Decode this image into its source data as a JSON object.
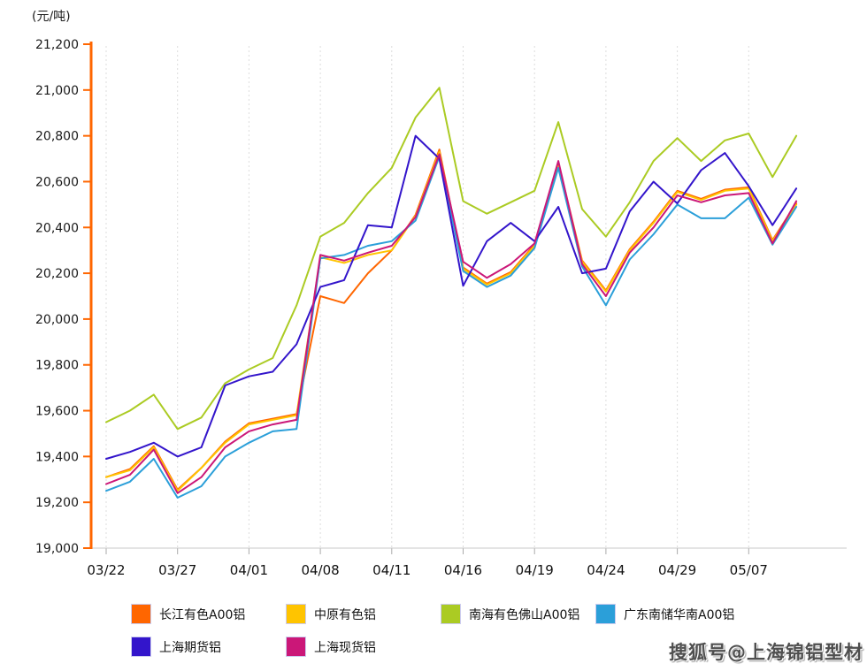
{
  "unit_label": "(元/吨)",
  "watermark": "搜狐号@上海锦铝型材",
  "chart_data": {
    "type": "line",
    "x_labels": [
      "03/22",
      "03/27",
      "04/01",
      "04/08",
      "04/11",
      "04/16",
      "04/19",
      "04/24",
      "04/29",
      "05/07"
    ],
    "label_every": 3,
    "n_points": 30,
    "y_min": 19000,
    "y_max": 21200,
    "y_step": 200,
    "y_tick_labels": [
      "21,200",
      "21,000",
      "20,800",
      "20,600",
      "20,400",
      "20,200",
      "20,000",
      "19,800",
      "19,600",
      "19,400",
      "19,200",
      "19,000"
    ],
    "grid": "vertical-dashed",
    "legend_position": "bottom",
    "axis_color": "#FF6600",
    "series": [
      {
        "name": "长江有色A00铝",
        "color": "#FF6600",
        "values": [
          19310,
          19345,
          19445,
          19255,
          19350,
          19465,
          19545,
          19565,
          19585,
          20100,
          20070,
          20200,
          20300,
          20455,
          20740,
          20225,
          20155,
          20205,
          20325,
          20680,
          20255,
          20125,
          20305,
          20425,
          20560,
          20525,
          20565,
          20575,
          20345,
          20505
        ]
      },
      {
        "name": "中原有色铝",
        "color": "#FFC400",
        "values": [
          19310,
          19340,
          19440,
          19250,
          19350,
          19460,
          19540,
          19560,
          19580,
          20270,
          20245,
          20280,
          20300,
          20450,
          20730,
          20220,
          20150,
          20200,
          20320,
          20670,
          20250,
          20120,
          20300,
          20420,
          20555,
          20520,
          20560,
          20570,
          20340,
          20500
        ]
      },
      {
        "name": "南海有色佛山A00铝",
        "color": "#ABCB23",
        "values": [
          19550,
          19600,
          19670,
          19520,
          19570,
          19720,
          19780,
          19830,
          20060,
          20360,
          20420,
          20550,
          20660,
          20880,
          21010,
          20515,
          20460,
          20510,
          20560,
          20860,
          20480,
          20360,
          20510,
          20690,
          20790,
          20690,
          20780,
          20810,
          20620,
          20800
        ]
      },
      {
        "name": "广东南储华南A00铝",
        "color": "#2B9FD9",
        "values": [
          19250,
          19290,
          19390,
          19220,
          19270,
          19400,
          19460,
          19510,
          19520,
          20265,
          20280,
          20320,
          20340,
          20430,
          20710,
          20210,
          20140,
          20190,
          20310,
          20660,
          20230,
          20060,
          20260,
          20370,
          20500,
          20440,
          20440,
          20530,
          20325,
          20490
        ]
      },
      {
        "name": "上海期货铝",
        "color": "#3315CB",
        "values": [
          19390,
          19420,
          19460,
          19400,
          19440,
          19710,
          19750,
          19770,
          19890,
          20140,
          20170,
          20410,
          20400,
          20800,
          20700,
          20145,
          20340,
          20420,
          20340,
          20490,
          20200,
          20220,
          20470,
          20600,
          20505,
          20650,
          20725,
          20580,
          20410,
          20570
        ]
      },
      {
        "name": "上海现货铝",
        "color": "#CB1778",
        "values": [
          19280,
          19320,
          19430,
          19240,
          19310,
          19440,
          19510,
          19540,
          19560,
          20280,
          20255,
          20290,
          20320,
          20445,
          20720,
          20250,
          20180,
          20240,
          20330,
          20690,
          20240,
          20100,
          20290,
          20400,
          20540,
          20510,
          20540,
          20550,
          20330,
          20515
        ]
      }
    ]
  }
}
